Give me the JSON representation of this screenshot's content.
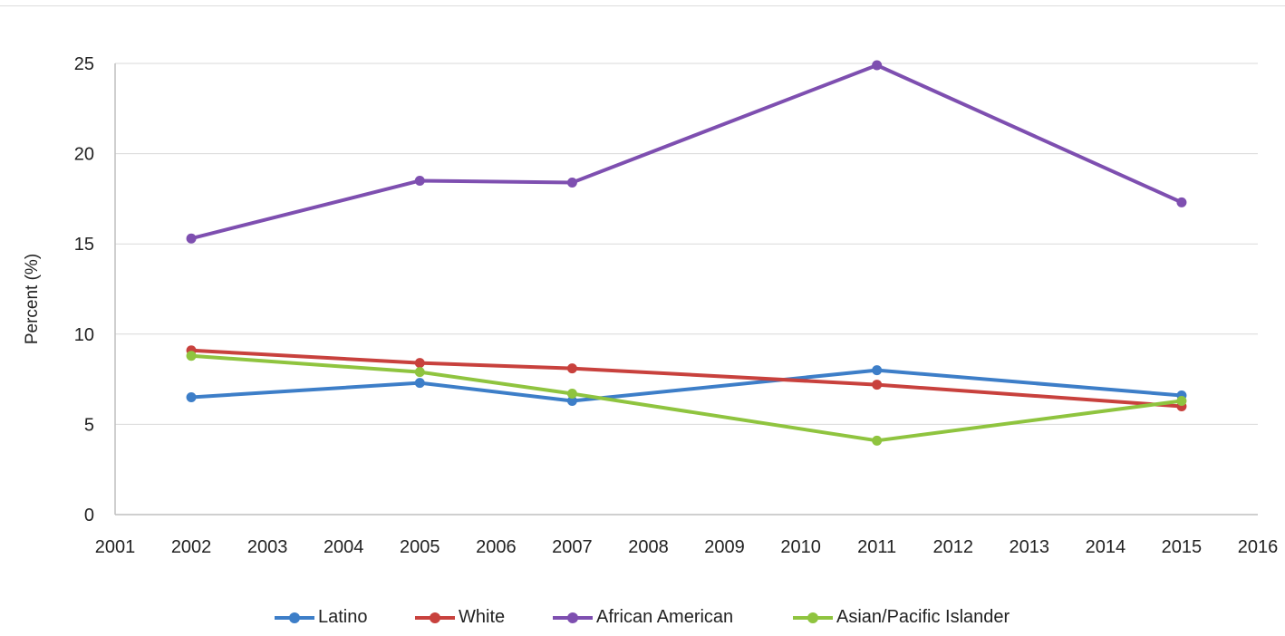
{
  "chart_data": {
    "type": "line",
    "title": "",
    "xlabel": "",
    "ylabel": "Percent (%)",
    "ylim": [
      0,
      25
    ],
    "yticks": [
      0,
      5,
      10,
      15,
      20,
      25
    ],
    "xlim": [
      2001,
      2016
    ],
    "xticks": [
      2001,
      2002,
      2003,
      2004,
      2005,
      2006,
      2007,
      2008,
      2009,
      2010,
      2011,
      2012,
      2013,
      2014,
      2015,
      2016
    ],
    "grid": "horizontal",
    "legend_position": "bottom",
    "x": [
      2002,
      2005,
      2007,
      2011,
      2015
    ],
    "series": [
      {
        "name": "Latino",
        "color": "#3d7ec8",
        "values": [
          6.5,
          7.3,
          6.3,
          8.0,
          6.6
        ]
      },
      {
        "name": "White",
        "color": "#c8413d",
        "values": [
          9.1,
          8.4,
          8.1,
          7.2,
          6.0
        ]
      },
      {
        "name": "African American",
        "color": "#7e4fb0",
        "values": [
          15.3,
          18.5,
          18.4,
          24.9,
          17.3
        ]
      },
      {
        "name": "Asian/Pacific Islander",
        "color": "#8fc43f",
        "values": [
          8.8,
          7.9,
          6.7,
          4.1,
          6.3
        ]
      }
    ]
  }
}
